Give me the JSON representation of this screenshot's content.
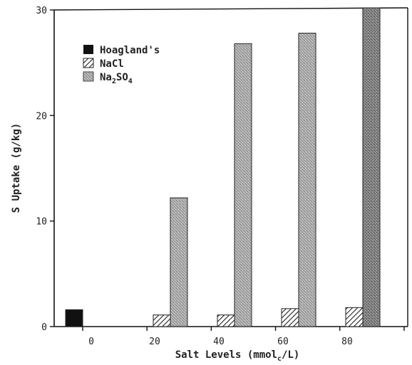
{
  "chart_data": {
    "type": "bar",
    "title": "",
    "xlabel": "Salt Levels (mmol",
    "xlabel_sub": "c",
    "xlabel_tail": "/L)",
    "ylabel": "S Uptake (g/kg)",
    "categories": [
      "0",
      "20",
      "40",
      "60",
      "80"
    ],
    "ylim": [
      0,
      30
    ],
    "yticks": [
      "0",
      "10",
      "20",
      "30"
    ],
    "grid": false,
    "legend_position": "top-left",
    "series": [
      {
        "name": "Hoagland's",
        "pattern": "solid",
        "color": "#111111",
        "values": [
          1.6,
          null,
          null,
          null,
          null
        ]
      },
      {
        "name": "NaCl",
        "pattern": "hatch",
        "color": "#555555",
        "values": [
          null,
          1.1,
          1.1,
          1.7,
          1.8
        ]
      },
      {
        "name_parts": [
          "Na",
          "2",
          "SO",
          "4"
        ],
        "pattern": "stipple",
        "color": "#999999",
        "values": [
          null,
          12.2,
          26.8,
          27.8,
          30.5
        ]
      }
    ]
  }
}
